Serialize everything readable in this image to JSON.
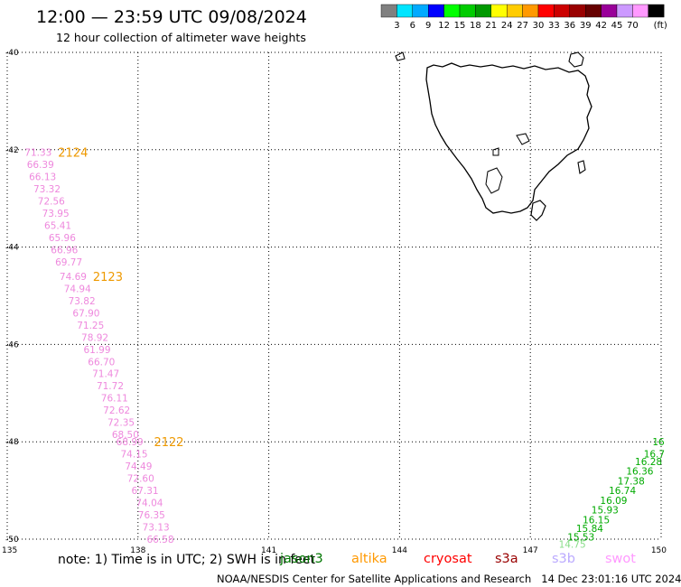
{
  "header": {
    "title": "12:00 — 23:59 UTC 09/08/2024",
    "subtitle": "12 hour collection of altimeter wave heights"
  },
  "color_scale": {
    "unit": "(ft)",
    "entries": [
      {
        "label": "",
        "color": "#808080"
      },
      {
        "label": "3",
        "color": "#00e5ff"
      },
      {
        "label": "6",
        "color": "#00aaff"
      },
      {
        "label": "9",
        "color": "#0000ff"
      },
      {
        "label": "12",
        "color": "#00ff00"
      },
      {
        "label": "15",
        "color": "#00cc00"
      },
      {
        "label": "18",
        "color": "#009900"
      },
      {
        "label": "21",
        "color": "#ffff00"
      },
      {
        "label": "24",
        "color": "#ffcc00"
      },
      {
        "label": "27",
        "color": "#ff9900"
      },
      {
        "label": "30",
        "color": "#ff0000"
      },
      {
        "label": "33",
        "color": "#cc0000"
      },
      {
        "label": "36",
        "color": "#990000"
      },
      {
        "label": "39",
        "color": "#660000"
      },
      {
        "label": "42",
        "color": "#990099"
      },
      {
        "label": "45",
        "color": "#cc99ff"
      },
      {
        "label": "70",
        "color": "#ff99ff"
      },
      {
        "label": "",
        "color": "#000000"
      }
    ]
  },
  "axes": {
    "lon_min": 135,
    "lon_max": 150,
    "lat_min": -50,
    "lat_max": -40,
    "lon_ticks": [
      135,
      138,
      141,
      144,
      147,
      150
    ],
    "lat_ticks": [
      -40,
      -42,
      -44,
      -46,
      -48,
      -50
    ],
    "lat_tick_labels": [
      "-40",
      "-42",
      "-44",
      "-46",
      "-48",
      "-50"
    ],
    "lon_tick_labels": [
      "135",
      "138",
      "141",
      "144",
      "147",
      "150"
    ]
  },
  "tracks": [
    {
      "satellite": "swot",
      "color": "#ee88dd",
      "pass_labels": [
        {
          "text": "2124",
          "lon": 136.0,
          "lat": -42.05
        },
        {
          "text": "2123",
          "lon": 136.8,
          "lat": -44.6
        },
        {
          "text": "2122",
          "lon": 138.2,
          "lat": -48.0
        }
      ],
      "values": [
        {
          "lon": 135.4,
          "lat": -42.05,
          "text": "71.33"
        },
        {
          "lon": 135.45,
          "lat": -42.3,
          "text": "66.39"
        },
        {
          "lon": 135.5,
          "lat": -42.55,
          "text": "66.13"
        },
        {
          "lon": 135.6,
          "lat": -42.8,
          "text": "73.32"
        },
        {
          "lon": 135.7,
          "lat": -43.05,
          "text": "72.56"
        },
        {
          "lon": 135.8,
          "lat": -43.3,
          "text": "73.95"
        },
        {
          "lon": 135.85,
          "lat": -43.55,
          "text": "65.41"
        },
        {
          "lon": 135.95,
          "lat": -43.8,
          "text": "65.96"
        },
        {
          "lon": 136.0,
          "lat": -44.05,
          "text": "66.96"
        },
        {
          "lon": 136.1,
          "lat": -44.3,
          "text": "69.77"
        },
        {
          "lon": 136.2,
          "lat": -44.6,
          "text": "74.69"
        },
        {
          "lon": 136.3,
          "lat": -44.85,
          "text": "74.94"
        },
        {
          "lon": 136.4,
          "lat": -45.1,
          "text": "73.82"
        },
        {
          "lon": 136.5,
          "lat": -45.35,
          "text": "67.90"
        },
        {
          "lon": 136.6,
          "lat": -45.6,
          "text": "71.25"
        },
        {
          "lon": 136.7,
          "lat": -45.85,
          "text": "78.92"
        },
        {
          "lon": 136.75,
          "lat": -46.1,
          "text": "61.99"
        },
        {
          "lon": 136.85,
          "lat": -46.35,
          "text": "66.70"
        },
        {
          "lon": 136.95,
          "lat": -46.6,
          "text": "71.47"
        },
        {
          "lon": 137.05,
          "lat": -46.85,
          "text": "71.72"
        },
        {
          "lon": 137.15,
          "lat": -47.1,
          "text": "76.11"
        },
        {
          "lon": 137.2,
          "lat": -47.35,
          "text": "72.62"
        },
        {
          "lon": 137.3,
          "lat": -47.6,
          "text": "72.35"
        },
        {
          "lon": 137.4,
          "lat": -47.85,
          "text": "68.50"
        },
        {
          "lon": 137.5,
          "lat": -48.0,
          "text": "68.99"
        },
        {
          "lon": 137.6,
          "lat": -48.25,
          "text": "74.15"
        },
        {
          "lon": 137.7,
          "lat": -48.5,
          "text": "74.49"
        },
        {
          "lon": 137.75,
          "lat": -48.75,
          "text": "72.60"
        },
        {
          "lon": 137.85,
          "lat": -49.0,
          "text": "67.31"
        },
        {
          "lon": 137.95,
          "lat": -49.25,
          "text": "74.04"
        },
        {
          "lon": 138.0,
          "lat": -49.5,
          "text": "76.35"
        },
        {
          "lon": 138.1,
          "lat": -49.75,
          "text": "73.13"
        },
        {
          "lon": 138.2,
          "lat": -50.0,
          "text": "66.58"
        }
      ]
    },
    {
      "satellite": "jason3",
      "color": "#00aa00",
      "pass_labels": [],
      "values": [
        {
          "lon": 149.8,
          "lat": -48.0,
          "text": "16"
        },
        {
          "lon": 149.6,
          "lat": -48.25,
          "text": "16.7"
        },
        {
          "lon": 149.4,
          "lat": -48.4,
          "text": "16.28"
        },
        {
          "lon": 149.2,
          "lat": -48.6,
          "text": "16.36"
        },
        {
          "lon": 149.0,
          "lat": -48.8,
          "text": "17.38"
        },
        {
          "lon": 148.8,
          "lat": -49.0,
          "text": "16.74"
        },
        {
          "lon": 148.6,
          "lat": -49.2,
          "text": "16.09"
        },
        {
          "lon": 148.4,
          "lat": -49.4,
          "text": "15.93"
        },
        {
          "lon": 148.2,
          "lat": -49.6,
          "text": "16.15"
        },
        {
          "lon": 148.05,
          "lat": -49.78,
          "text": "15.84"
        },
        {
          "lon": 147.85,
          "lat": -49.95,
          "text": "15.53"
        }
      ]
    },
    {
      "satellite": "jason3-light",
      "color": "#88dd88",
      "pass_labels": [],
      "values": [
        {
          "lon": 147.65,
          "lat": -50.1,
          "text": "14.75"
        }
      ]
    }
  ],
  "legend": {
    "note": "note: 1) Time is in UTC; 2) SWH is in feet",
    "satellites": [
      {
        "name": "jason3",
        "color": "#007700"
      },
      {
        "name": "altika",
        "color": "#ff9900"
      },
      {
        "name": "cryosat",
        "color": "#ff0000"
      },
      {
        "name": "s3a",
        "color": "#990000"
      },
      {
        "name": "s3b",
        "color": "#bbaaff"
      },
      {
        "name": "swot",
        "color": "#ff99ff"
      }
    ]
  },
  "footer": {
    "credit": "NOAA/NESDIS Center for Satellite Applications and Research   14 Dec 23:01:16 UTC 2024"
  }
}
